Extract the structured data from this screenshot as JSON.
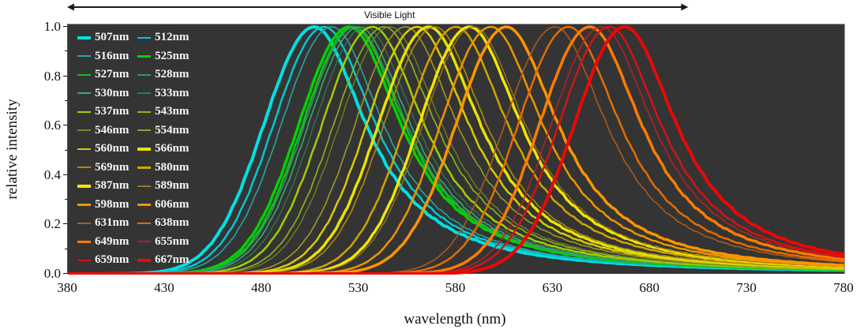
{
  "annotation": {
    "label": "Visible Light",
    "range_nm": [
      380,
      700
    ]
  },
  "axes": {
    "x": {
      "label": "wavelength (nm)",
      "ticks": [
        "380",
        "430",
        "480",
        "530",
        "580",
        "630",
        "680",
        "730",
        "780"
      ]
    },
    "y": {
      "label": "relative intensity",
      "ticks": [
        "0.0",
        "0.2",
        "0.4",
        "0.6",
        "0.8",
        "1.0"
      ]
    }
  },
  "chart_data": {
    "type": "line",
    "title": "",
    "xlabel": "wavelength (nm)",
    "ylabel": "relative intensity",
    "xlim": [
      380,
      780
    ],
    "ylim": [
      0.0,
      1.0
    ],
    "grid": false,
    "plot_background": "#343434",
    "legend_position": "top-left",
    "curve_shape": {
      "model": "peak-normalized-emission",
      "peak_intensity": 1.0,
      "sigma_left_nm": 26,
      "gamma_right_nm": 33
    },
    "series": [
      {
        "label": "507nm",
        "peak_nm": 507,
        "peak_intensity": 1.0,
        "color": "#00e1e1",
        "line_width": 4
      },
      {
        "label": "512nm",
        "peak_nm": 512,
        "peak_intensity": 1.0,
        "color": "#00c8d0",
        "line_width": 2.5
      },
      {
        "label": "516nm",
        "peak_nm": 516,
        "peak_intensity": 1.0,
        "color": "#2aa49e",
        "line_width": 1.6
      },
      {
        "label": "525nm",
        "peak_nm": 525,
        "peak_intensity": 1.0,
        "color": "#00d400",
        "line_width": 3.5
      },
      {
        "label": "527nm",
        "peak_nm": 527,
        "peak_intensity": 1.0,
        "color": "#10c41c",
        "line_width": 2.5
      },
      {
        "label": "528nm",
        "peak_nm": 528,
        "peak_intensity": 1.0,
        "color": "#2f9c52",
        "line_width": 1.6
      },
      {
        "label": "530nm",
        "peak_nm": 530,
        "peak_intensity": 1.0,
        "color": "#3aa878",
        "line_width": 1.6
      },
      {
        "label": "533nm",
        "peak_nm": 533,
        "peak_intensity": 1.0,
        "color": "#2e7a55",
        "line_width": 1.3
      },
      {
        "label": "537nm",
        "peak_nm": 537,
        "peak_intensity": 1.0,
        "color": "#a2ce00",
        "line_width": 2.5
      },
      {
        "label": "543nm",
        "peak_nm": 543,
        "peak_intensity": 1.0,
        "color": "#8db81c",
        "line_width": 1.6
      },
      {
        "label": "546nm",
        "peak_nm": 546,
        "peak_intensity": 1.0,
        "color": "#74881e",
        "line_width": 1.3
      },
      {
        "label": "554nm",
        "peak_nm": 554,
        "peak_intensity": 1.0,
        "color": "#9e9a22",
        "line_width": 1.6
      },
      {
        "label": "560nm",
        "peak_nm": 560,
        "peak_intensity": 1.0,
        "color": "#d8cc00",
        "line_width": 2.5
      },
      {
        "label": "566nm",
        "peak_nm": 566,
        "peak_intensity": 1.0,
        "color": "#e8e200",
        "line_width": 3.5
      },
      {
        "label": "569nm",
        "peak_nm": 569,
        "peak_intensity": 1.0,
        "color": "#ac8a10",
        "line_width": 1.6
      },
      {
        "label": "580nm",
        "peak_nm": 580,
        "peak_intensity": 1.0,
        "color": "#d2a400",
        "line_width": 2.5
      },
      {
        "label": "587nm",
        "peak_nm": 587,
        "peak_intensity": 1.0,
        "color": "#f4e400",
        "line_width": 3.5
      },
      {
        "label": "589nm",
        "peak_nm": 589,
        "peak_intensity": 1.0,
        "color": "#96761a",
        "line_width": 1.4
      },
      {
        "label": "598nm",
        "peak_nm": 598,
        "peak_intensity": 1.0,
        "color": "#ee9600",
        "line_width": 2.5
      },
      {
        "label": "606nm",
        "peak_nm": 606,
        "peak_intensity": 1.0,
        "color": "#ff9500",
        "line_width": 3.5
      },
      {
        "label": "631nm",
        "peak_nm": 631,
        "peak_intensity": 1.0,
        "color": "#aa5a1e",
        "line_width": 1.6
      },
      {
        "label": "638nm",
        "peak_nm": 638,
        "peak_intensity": 1.0,
        "color": "#e66c00",
        "line_width": 2.5
      },
      {
        "label": "649nm",
        "peak_nm": 649,
        "peak_intensity": 1.0,
        "color": "#ff7c00",
        "line_width": 3.5
      },
      {
        "label": "655nm",
        "peak_nm": 655,
        "peak_intensity": 1.0,
        "color": "#b42222",
        "line_width": 1.6
      },
      {
        "label": "659nm",
        "peak_nm": 659,
        "peak_intensity": 1.0,
        "color": "#d21414",
        "line_width": 2.5
      },
      {
        "label": "667nm",
        "peak_nm": 667,
        "peak_intensity": 1.0,
        "color": "#ee0606",
        "line_width": 4
      }
    ]
  }
}
